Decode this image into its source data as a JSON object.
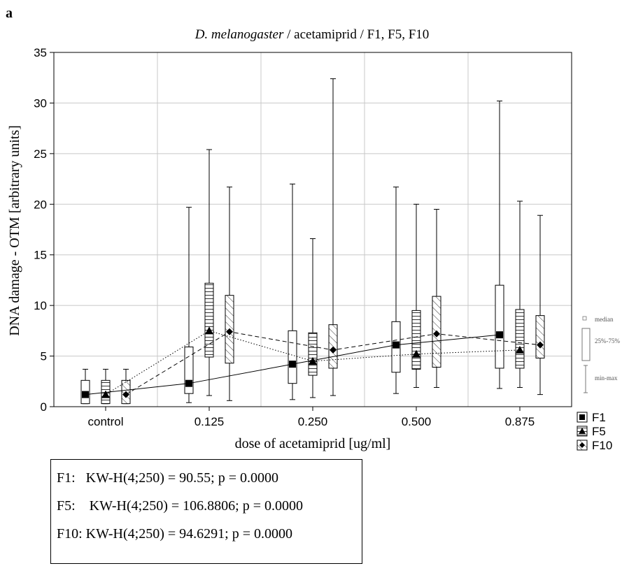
{
  "panel_label": "a",
  "stats": [
    "F1:   KW-H(4;250) = 90.55; p = 0.0000",
    "F5:    KW-H(4;250) = 106.8806; p = 0.0000",
    "F10: KW-H(4;250) = 94.6291; p = 0.0000"
  ],
  "chart_data": {
    "type": "box",
    "title": {
      "italic": "D. melanogaster",
      "rest": " / acetamiprid / F1, F5, F10"
    },
    "xlabel": "dose of acetamiprid [ug/ml]",
    "ylabel": "DNA damage - OTM [arbitrary units]",
    "ylim": [
      0,
      35
    ],
    "yticks": [
      0,
      5,
      10,
      15,
      20,
      25,
      30,
      35
    ],
    "categories": [
      "control",
      "0.125",
      "0.250",
      "0.500",
      "0.875"
    ],
    "grid": true,
    "legend_position": "right",
    "series": [
      {
        "name": "F1",
        "pattern": "plain",
        "marker": "square",
        "line": "solid",
        "boxes": [
          {
            "min": 0.3,
            "q1": 0.3,
            "median": 1.2,
            "q3": 2.6,
            "max": 3.7
          },
          {
            "min": 0.4,
            "q1": 1.3,
            "median": 2.3,
            "q3": 5.9,
            "max": 19.7
          },
          {
            "min": 0.7,
            "q1": 2.3,
            "median": 4.2,
            "q3": 7.5,
            "max": 22.0
          },
          {
            "min": 1.3,
            "q1": 3.4,
            "median": 6.1,
            "q3": 8.4,
            "max": 21.7
          },
          {
            "min": 1.8,
            "q1": 3.8,
            "median": 7.1,
            "q3": 12.0,
            "max": 30.2
          }
        ]
      },
      {
        "name": "F5",
        "pattern": "horizontal",
        "marker": "triangle",
        "line": "dotted",
        "boxes": [
          {
            "min": 0.3,
            "q1": 0.3,
            "median": 1.2,
            "q3": 2.6,
            "max": 3.7
          },
          {
            "min": 1.1,
            "q1": 4.9,
            "median": 7.5,
            "q3": 12.2,
            "max": 25.4
          },
          {
            "min": 0.9,
            "q1": 3.1,
            "median": 4.5,
            "q3": 7.3,
            "max": 16.6
          },
          {
            "min": 1.9,
            "q1": 3.7,
            "median": 5.2,
            "q3": 9.5,
            "max": 20.0
          },
          {
            "min": 1.9,
            "q1": 3.8,
            "median": 5.6,
            "q3": 9.6,
            "max": 20.3
          }
        ]
      },
      {
        "name": "F10",
        "pattern": "diagonal",
        "marker": "diamond",
        "line": "dashed",
        "boxes": [
          {
            "min": 0.3,
            "q1": 0.3,
            "median": 1.2,
            "q3": 2.6,
            "max": 3.7
          },
          {
            "min": 0.6,
            "q1": 4.3,
            "median": 7.4,
            "q3": 11.0,
            "max": 21.7
          },
          {
            "min": 1.1,
            "q1": 3.8,
            "median": 5.6,
            "q3": 8.1,
            "max": 32.4
          },
          {
            "min": 1.9,
            "q1": 3.9,
            "median": 7.2,
            "q3": 10.9,
            "max": 19.5
          },
          {
            "min": 1.2,
            "q1": 4.8,
            "median": 6.1,
            "q3": 9.0,
            "max": 18.9
          }
        ]
      }
    ],
    "mini_legend": {
      "median": "median",
      "box": "25%-75%",
      "whisker": "min-max"
    }
  }
}
